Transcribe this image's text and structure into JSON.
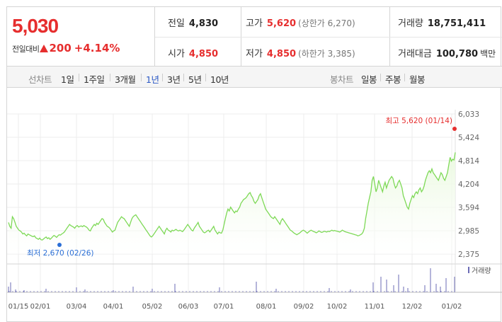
{
  "quote": {
    "price": "5,030",
    "change_label": "전일대비",
    "change_amount": "200",
    "change_rate": "+4.14%",
    "prev_close_label": "전일",
    "prev_close": "4,830",
    "open_label": "시가",
    "open": "4,850",
    "high_label": "고가",
    "high": "5,620",
    "upper_limit": "(상한가 6,270)",
    "low_label": "저가",
    "low": "4,850",
    "lower_limit": "(하한가 3,385)",
    "volume_label": "거래량",
    "volume": "18,751,411",
    "amount_label": "거래대금",
    "amount": "100,780",
    "amount_unit": "백만",
    "up_color": "#e62e2e"
  },
  "tabs": {
    "line_chart_label": "선차트",
    "periods": [
      "1일",
      "1주일",
      "3개월",
      "1년",
      "3년",
      "5년",
      "10년"
    ],
    "active_period": "1년",
    "candle_chart_label": "봉차트",
    "candles": [
      "일봉",
      "주봉",
      "월봉"
    ]
  },
  "chart_data": {
    "type": "area",
    "y_ticks": [
      "6,033",
      "5,424",
      "4,814",
      "4,204",
      "3,594",
      "2,985",
      "2,375"
    ],
    "ylim": [
      2375,
      6033
    ],
    "x_ticks": [
      "01/15",
      "02/01",
      "03/04",
      "04/01",
      "05/02",
      "06/03",
      "07/01",
      "08/01",
      "09/02",
      "10/02",
      "11/01",
      "12/02",
      "01/02"
    ],
    "high_annotation": "최고 5,620 (01/14)",
    "low_annotation": "최저 2,670 (02/26)",
    "volume_legend": "거래량",
    "line_color": "#7ed957",
    "fill_color": "#eaf9df",
    "high_marker_color": "#e62e2e",
    "low_marker_color": "#2b6fd6",
    "volume_color": "#6b6bb5",
    "series": [
      {
        "values": [
          3200,
          3100,
          3050,
          3350,
          3300,
          3200,
          3100,
          3050,
          3000,
          2980,
          2950,
          2900,
          2920,
          2880,
          2850,
          2900,
          2880,
          2860,
          2840,
          2830,
          2850,
          2800,
          2780,
          2760,
          2790,
          2750,
          2740,
          2770,
          2800,
          2820,
          2780,
          2800,
          2760,
          2790,
          2830,
          2860,
          2840,
          2810,
          2850,
          2880,
          2870,
          2900,
          2920,
          2950,
          3000,
          3050,
          3100,
          3150,
          3120,
          3100,
          3080,
          3050,
          3100,
          3120,
          3080,
          3100,
          3110,
          3090,
          3120,
          3100,
          3080,
          3050,
          3000,
          2980,
          3050,
          3100,
          3150,
          3120,
          3180,
          3150,
          3200,
          3250,
          3300,
          3280,
          3200,
          3150,
          3100,
          3080,
          3050,
          3000,
          2950,
          2980,
          3000,
          3100,
          3200,
          3250,
          3300,
          3350,
          3320,
          3300,
          3250,
          3200,
          3150,
          3100,
          3200,
          3300,
          3350,
          3380,
          3400,
          3350,
          3300,
          3250,
          3200,
          3150,
          3100,
          3050,
          3000,
          2950,
          2900,
          2850,
          2820,
          2850,
          2900,
          2950,
          3000,
          3050,
          3100,
          3050,
          3000,
          2950,
          2900,
          3000,
          3050,
          3000,
          2980,
          2950,
          3000,
          2980,
          3000,
          3020,
          2990,
          2980,
          3000,
          2980,
          2960,
          3000,
          3050,
          3100,
          3150,
          3100,
          3050,
          3000,
          2980,
          3050,
          3100,
          3150,
          3200,
          3100,
          3050,
          3000,
          2950,
          2930,
          2950,
          2980,
          3000,
          2950,
          3000,
          3050,
          3100,
          3000,
          2950,
          2900,
          2950,
          2930,
          2920,
          3000,
          3150,
          3300,
          3450,
          3550,
          3500,
          3600,
          3550,
          3500,
          3450,
          3500,
          3480,
          3550,
          3600,
          3700,
          3750,
          3800,
          3820,
          3850,
          3900,
          3950,
          3980,
          3900,
          3850,
          3750,
          3700,
          3750,
          3800,
          3900,
          3950,
          3850,
          3750,
          3650,
          3550,
          3500,
          3450,
          3400,
          3350,
          3320,
          3300,
          3350,
          3300,
          3250,
          3200,
          3150,
          3250,
          3300,
          3250,
          3200,
          3150,
          3100,
          3050,
          3000,
          2980,
          2950,
          2920,
          2900,
          2880,
          2900,
          2920,
          2950,
          2980,
          3000,
          2980,
          2950,
          2920,
          2950,
          2980,
          3000,
          2980,
          2960,
          2950,
          2930,
          2950,
          2980,
          2960,
          2940,
          2950,
          2970,
          2960,
          2950,
          2970,
          2960,
          2980,
          3000,
          2980,
          2990,
          2980,
          2970,
          2960,
          2950,
          2970,
          3000,
          2980,
          2960,
          2950,
          2940,
          2930,
          2920,
          2910,
          2900,
          2890,
          2880,
          2870,
          2850,
          2860,
          2880,
          2900,
          2950,
          3050,
          3300,
          3500,
          3700,
          3850,
          4000,
          4300,
          4400,
          4200,
          4000,
          4100,
          4300,
          4200,
          4100,
          4000,
          4150,
          4250,
          4100,
          4200,
          4300,
          4350,
          4400,
          4350,
          4200,
          4100,
          4150,
          4250,
          4300,
          4200,
          4100,
          3900,
          3800,
          3700,
          3600,
          3550,
          3700,
          3800,
          3900,
          3850,
          3950,
          4000,
          3950,
          4050,
          4100,
          4000,
          4050,
          4150,
          4300,
          4400,
          4500,
          4550,
          4500,
          4600,
          4500,
          4450,
          4400,
          4350,
          4300,
          4400,
          4500,
          4450,
          4350,
          4300,
          4400,
          4500,
          4700,
          4900,
          4800,
          4850,
          4830,
          5030
        ]
      }
    ]
  }
}
